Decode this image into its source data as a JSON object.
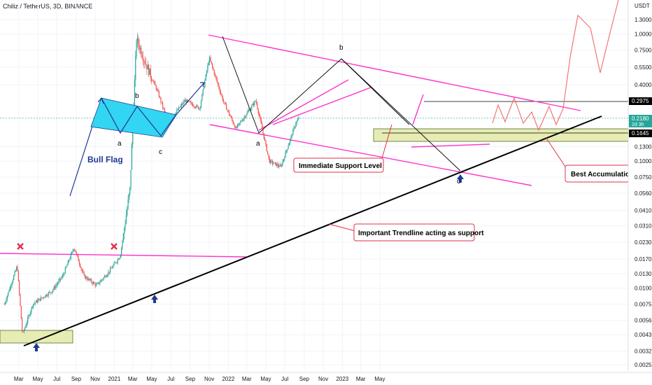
{
  "header": {
    "title": "Chiliz / TetherUS, 3D, BINANCE"
  },
  "price_axis": {
    "currency": "USDT",
    "ticks": [
      "1.3000",
      "1.0000",
      "0.7500",
      "0.5500",
      "0.4000",
      "0.2975",
      "0.2180",
      "0.1645",
      "0.1300",
      "0.1000",
      "0.0750",
      "0.0560",
      "0.0410",
      "0.0310",
      "0.0230",
      "0.0170",
      "0.0130",
      "0.0100",
      "0.0075",
      "0.0056",
      "0.0043",
      "0.0032",
      "0.0025"
    ],
    "current_price": "0.2180",
    "countdown": "2d 3h",
    "level_high": "0.2975",
    "level_support": "0.1645"
  },
  "time_axis": {
    "labels": [
      "Mar",
      "May",
      "Jul",
      "Sep",
      "Nov",
      "2021",
      "Mar",
      "May",
      "Jul",
      "Sep",
      "Nov",
      "2022",
      "Mar",
      "May",
      "Jul",
      "Sep",
      "Nov",
      "2023",
      "Mar",
      "May"
    ]
  },
  "annotations": {
    "bull_flag": "Bull Flag",
    "immediate_support": "Immediate Support Level",
    "important_trendline": "Important Trendline acting as support",
    "best_accumulation": "Best Accumulation Zon",
    "wave_b_left": "b",
    "wave_a_left": "a",
    "wave_c_left": "c",
    "wave_b_main": "b",
    "wave_a_main": "a",
    "wave_c_main": "c"
  },
  "colors": {
    "up_candle": "#26a69a",
    "down_candle": "#ef5350",
    "channel": "#ff33cc",
    "trendline": "#000000",
    "flag_fill": "#33d6f2",
    "zone_fill": "#e6ecb3",
    "arrow_blue": "#1f3a93",
    "x_mark": "#e0304a",
    "projection": "#f36b6b",
    "callout_border": "#e0304a",
    "last_price_tag": "#26a69a"
  },
  "chart_data": {
    "type": "candlestick",
    "symbol": "CHZUSDT",
    "interval": "3D",
    "exchange": "BINANCE",
    "scale": "log",
    "y_ticks": [
      1.3,
      1.0,
      0.75,
      0.55,
      0.4,
      0.3,
      0.23,
      0.17,
      0.13,
      0.1,
      0.075,
      0.056,
      0.041,
      0.031,
      0.023,
      0.017,
      0.013,
      0.01,
      0.0075,
      0.0056,
      0.0043,
      0.0032,
      0.0025
    ],
    "x_ticks": [
      "Mar",
      "May",
      "Jul",
      "Sep",
      "Nov",
      "2021",
      "Mar",
      "May",
      "Jul",
      "Sep",
      "Nov",
      "2022",
      "Mar",
      "May",
      "Jul",
      "Sep",
      "Nov",
      "2023",
      "Mar",
      "May"
    ],
    "price_path": [
      {
        "date": "2020-01-15",
        "price": 0.0075
      },
      {
        "date": "2020-02-25",
        "price": 0.015
      },
      {
        "date": "2020-03-13",
        "price": 0.0043
      },
      {
        "date": "2020-04-15",
        "price": 0.0075
      },
      {
        "date": "2020-06-15",
        "price": 0.0095
      },
      {
        "date": "2020-07-20",
        "price": 0.0125
      },
      {
        "date": "2020-08-25",
        "price": 0.021
      },
      {
        "date": "2020-09-25",
        "price": 0.0125
      },
      {
        "date": "2020-11-05",
        "price": 0.0105
      },
      {
        "date": "2020-12-15",
        "price": 0.0135
      },
      {
        "date": "2021-01-20",
        "price": 0.018
      },
      {
        "date": "2021-02-20",
        "price": 0.06
      },
      {
        "date": "2021-03-13",
        "price": 0.92
      },
      {
        "date": "2021-04-10",
        "price": 0.6
      },
      {
        "date": "2021-05-20",
        "price": 0.35
      },
      {
        "date": "2021-06-22",
        "price": 0.2
      },
      {
        "date": "2021-08-15",
        "price": 0.3
      },
      {
        "date": "2021-10-01",
        "price": 0.26
      },
      {
        "date": "2021-11-01",
        "price": 0.65
      },
      {
        "date": "2021-12-15",
        "price": 0.3
      },
      {
        "date": "2022-01-25",
        "price": 0.18
      },
      {
        "date": "2022-03-30",
        "price": 0.3
      },
      {
        "date": "2022-05-12",
        "price": 0.1
      },
      {
        "date": "2022-06-18",
        "price": 0.09
      },
      {
        "date": "2022-08-05",
        "price": 0.2
      },
      {
        "date": "2022-08-15",
        "price": 0.218
      }
    ],
    "levels": [
      {
        "label": "0.2975",
        "value": 0.2975
      },
      {
        "label": "0.1645",
        "value": 0.1645
      }
    ],
    "last_price": 0.218
  }
}
